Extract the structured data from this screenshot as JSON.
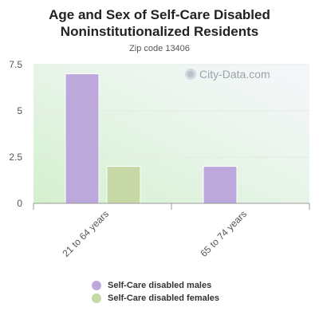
{
  "title": "Age and Sex of Self-Care Disabled Noninstitutionalized Residents",
  "subtitle": "Zip code 13406",
  "watermark": "City-Data.com",
  "chart_data": {
    "type": "bar",
    "categories": [
      "21 to 64 years",
      "65 to 74 years"
    ],
    "series": [
      {
        "name": "Self-Care disabled males",
        "values": [
          7,
          2
        ],
        "color": "#bda8dc"
      },
      {
        "name": "Self-Care disabled females",
        "values": [
          2,
          0
        ],
        "color": "#c5d8a6"
      }
    ],
    "yticks": [
      "0",
      "2.5",
      "5",
      "7.5"
    ],
    "ylim": [
      0,
      7.5
    ],
    "grid": true,
    "legend_position": "bottom"
  }
}
